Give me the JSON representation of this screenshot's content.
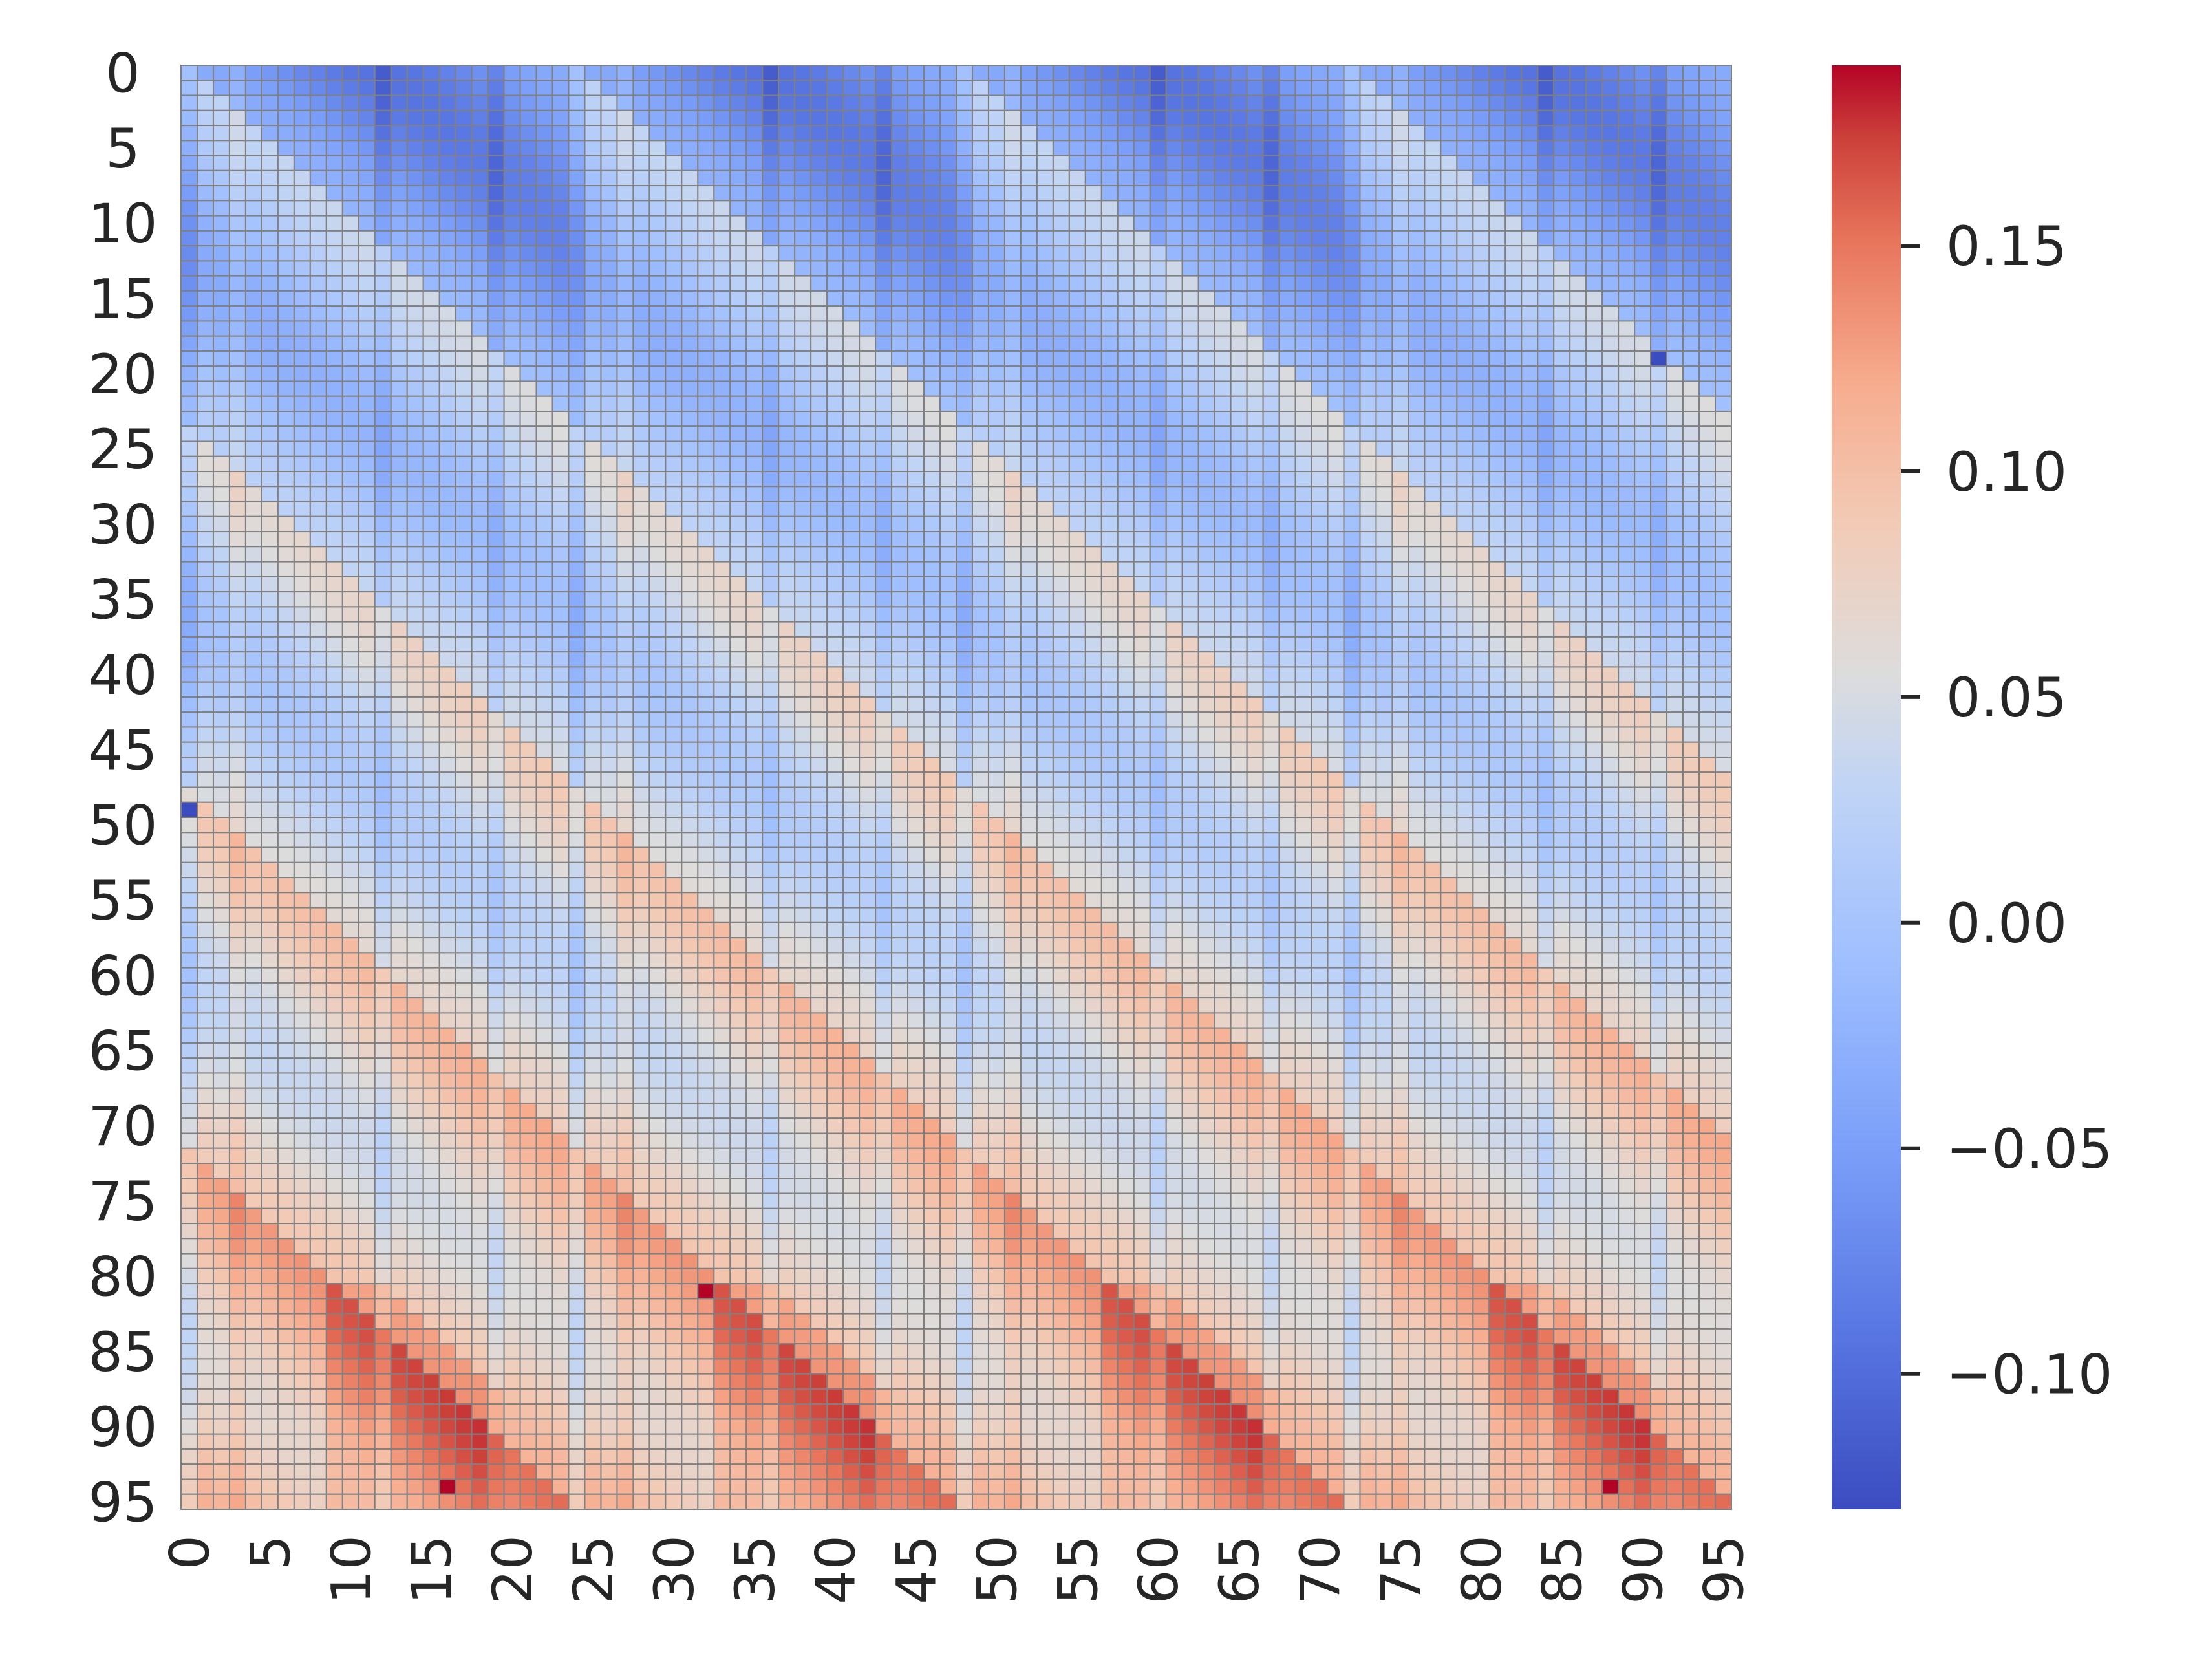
{
  "chart_data": {
    "type": "heatmap",
    "title": "",
    "xlabel": "",
    "ylabel": "",
    "n_rows": 96,
    "n_cols": 96,
    "x_ticks": [
      "0",
      "5",
      "10",
      "15",
      "20",
      "25",
      "30",
      "35",
      "40",
      "45",
      "50",
      "55",
      "60",
      "65",
      "70",
      "75",
      "80",
      "85",
      "90",
      "95"
    ],
    "y_ticks": [
      "0",
      "5",
      "10",
      "15",
      "20",
      "25",
      "30",
      "35",
      "40",
      "45",
      "50",
      "55",
      "60",
      "65",
      "70",
      "75",
      "80",
      "85",
      "90",
      "95"
    ],
    "colormap": "coolwarm",
    "vmin": -0.13,
    "vmax": 0.19,
    "colorbar_ticks": [
      "0.15",
      "0.10",
      "0.05",
      "0.00",
      "−0.05",
      "−0.10"
    ],
    "colorbar_tick_values": [
      0.15,
      0.1,
      0.05,
      0.0,
      -0.05,
      -0.1
    ],
    "cell_edge_color": "#808080",
    "colors": {
      "low": "#3b4cc0",
      "mid": "#dddddd",
      "high": "#b40426",
      "text": "#262626"
    },
    "pattern": {
      "description_values": "Periodic sawtooth diagonal bands; four repeating blocks along x (period 24), value rises toward bottom rows; min about -0.13, max about 0.19",
      "period": 24,
      "col_breaks": [
        0,
        24,
        48,
        72
      ],
      "strong_minimum_cells": [
        [
          49,
          0
        ],
        [
          19,
          91
        ]
      ],
      "strong_maximum_cells": [
        [
          94,
          16
        ],
        [
          81,
          32
        ],
        [
          94,
          88
        ]
      ]
    }
  }
}
